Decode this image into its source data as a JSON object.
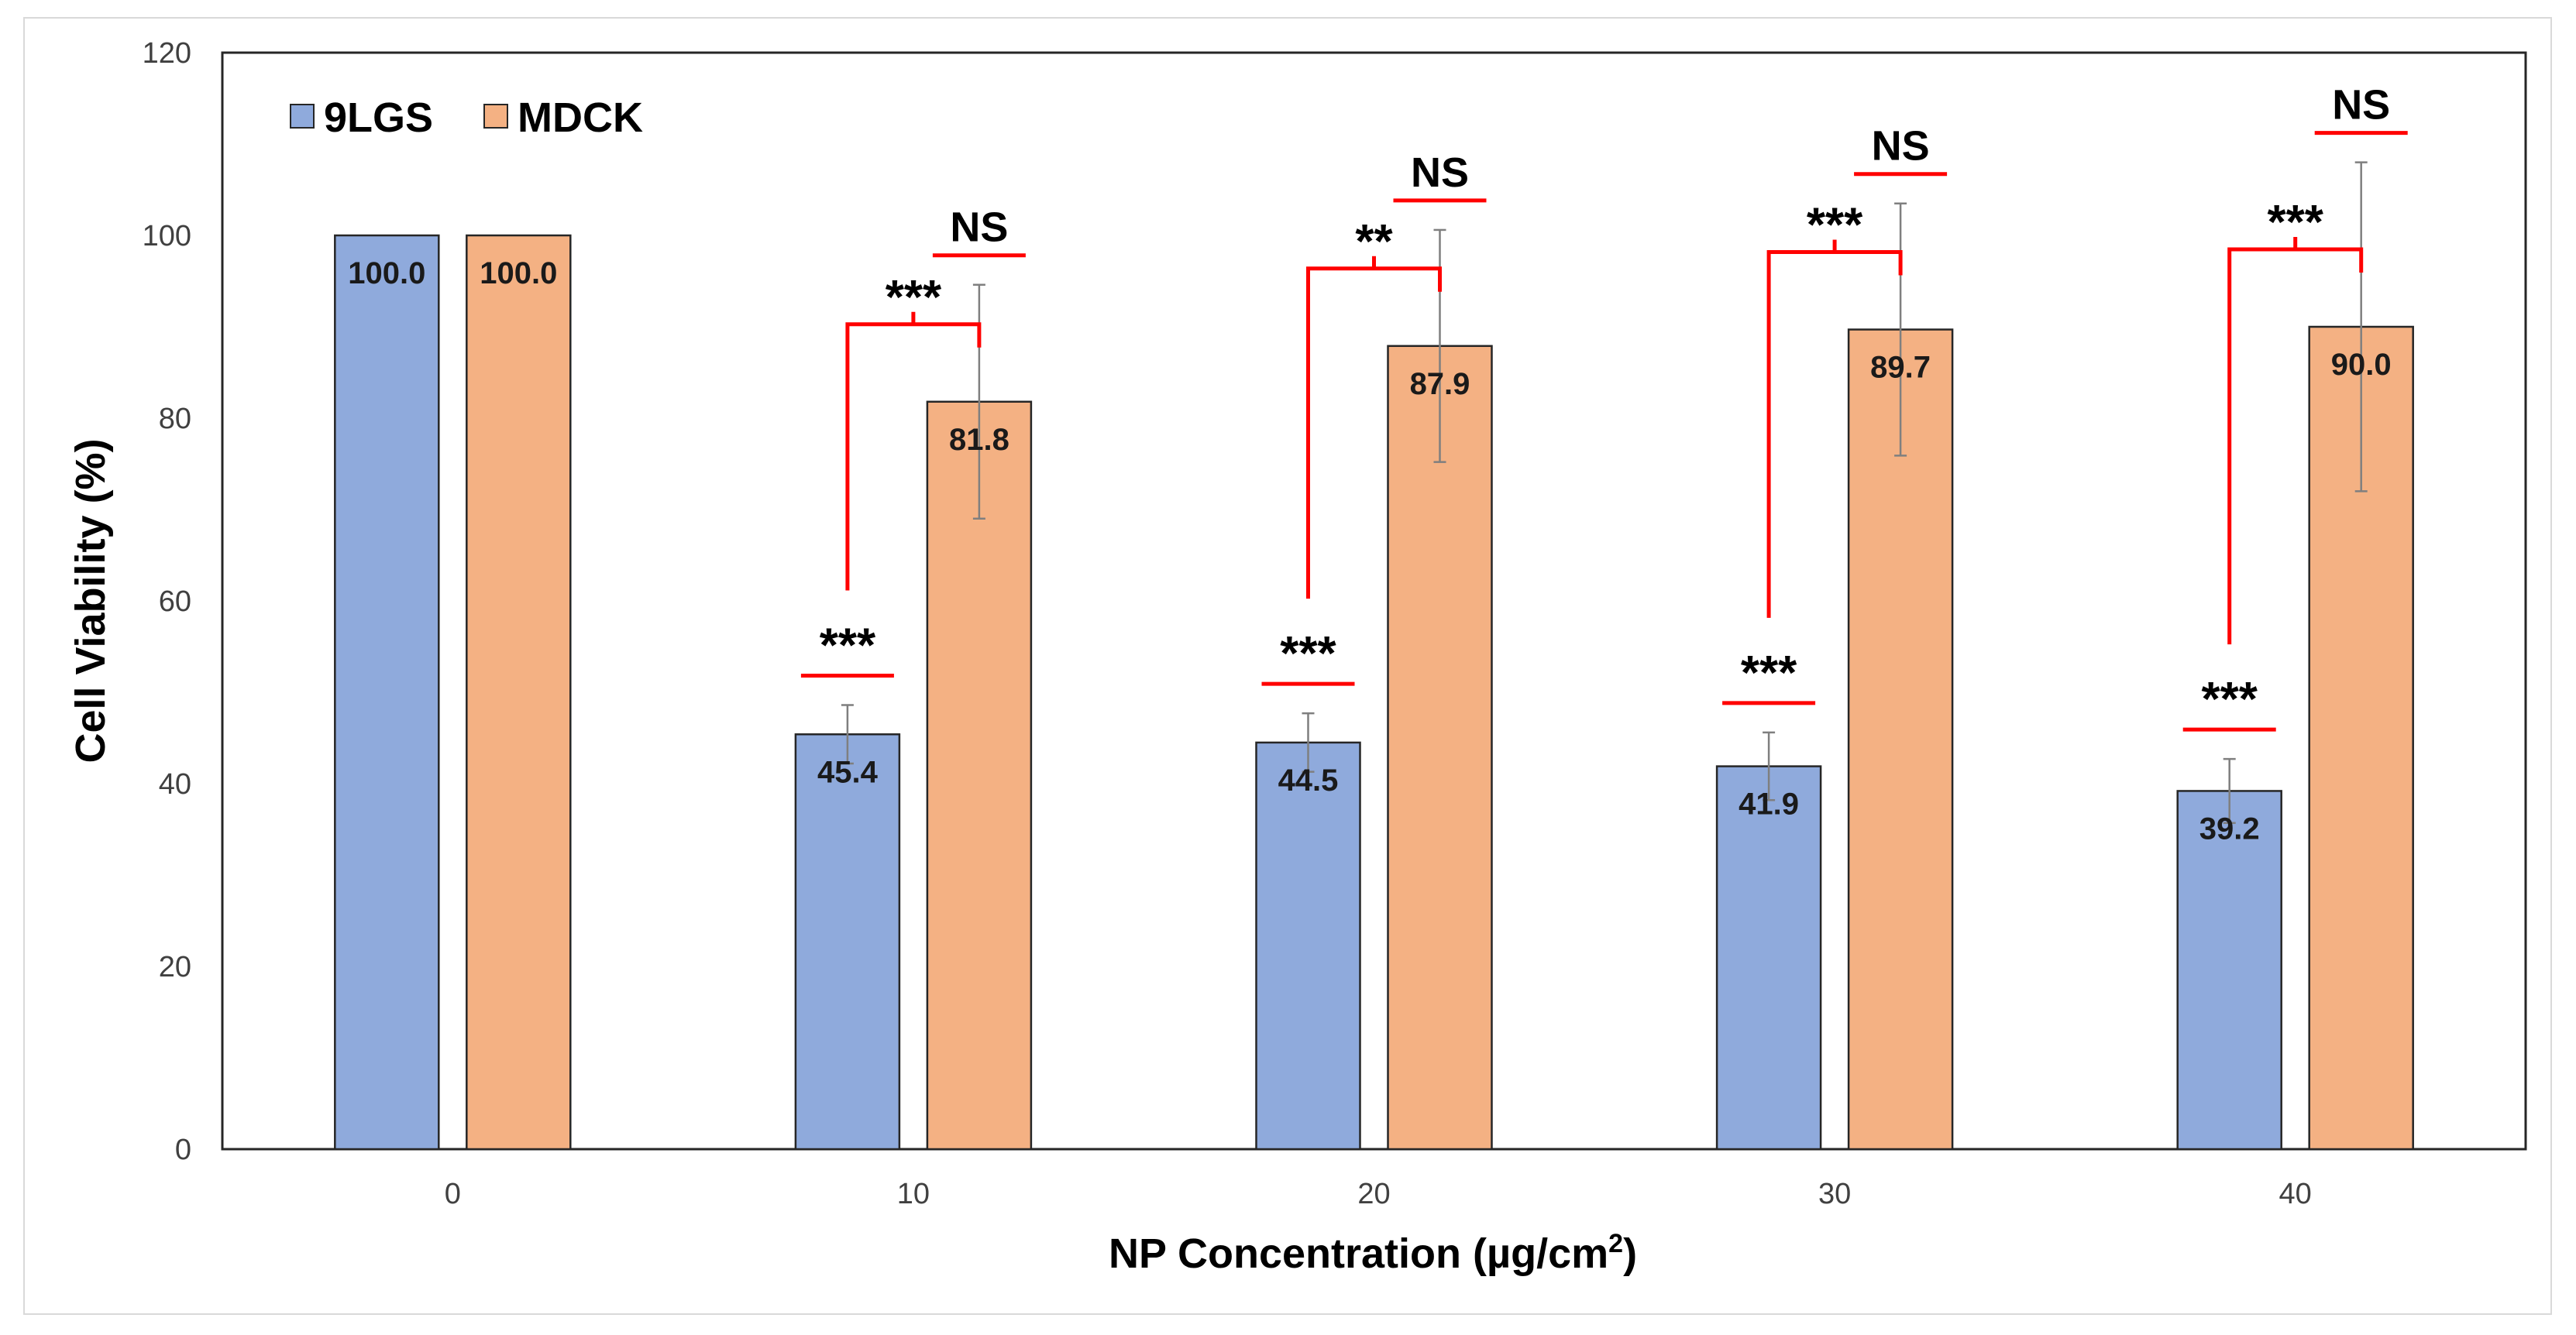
{
  "chart_data": {
    "type": "bar",
    "title": "",
    "xlabel": "NP Concentration (µg/cm²)",
    "xlabel_main": "NP Concentration (µg/cm",
    "xlabel_sup": "2",
    "xlabel_tail": ")",
    "ylabel": "Cell Viability (%)",
    "ylim": [
      0,
      120
    ],
    "yticks": [
      "0",
      "20",
      "40",
      "60",
      "80",
      "100",
      "120"
    ],
    "categories": [
      "0",
      "10",
      "20",
      "30",
      "40"
    ],
    "grid": false,
    "legend_position": "top-left",
    "series": [
      {
        "name": "9LGS",
        "color": "#8faadc",
        "values": [
          100.0,
          45.4,
          44.5,
          41.9,
          39.2
        ],
        "labels": [
          "100.0",
          "45.4",
          "44.5",
          "41.9",
          "39.2"
        ],
        "errors": [
          0,
          3.2,
          3.2,
          3.7,
          3.5
        ]
      },
      {
        "name": "MDCK",
        "color": "#f4b183",
        "values": [
          100.0,
          81.8,
          87.9,
          89.7,
          90.0
        ],
        "labels": [
          "100.0",
          "81.8",
          "87.9",
          "89.7",
          "90.0"
        ],
        "errors": [
          0,
          12.8,
          12.7,
          13.8,
          18.0
        ]
      }
    ],
    "annotations": {
      "color": "#ff0000",
      "vs_control": [
        "***",
        "***",
        "***",
        "***"
      ],
      "mdck_vs_control": [
        "NS",
        "NS",
        "NS",
        "NS"
      ],
      "between_groups": [
        "***",
        "**",
        "***",
        "***"
      ]
    }
  }
}
